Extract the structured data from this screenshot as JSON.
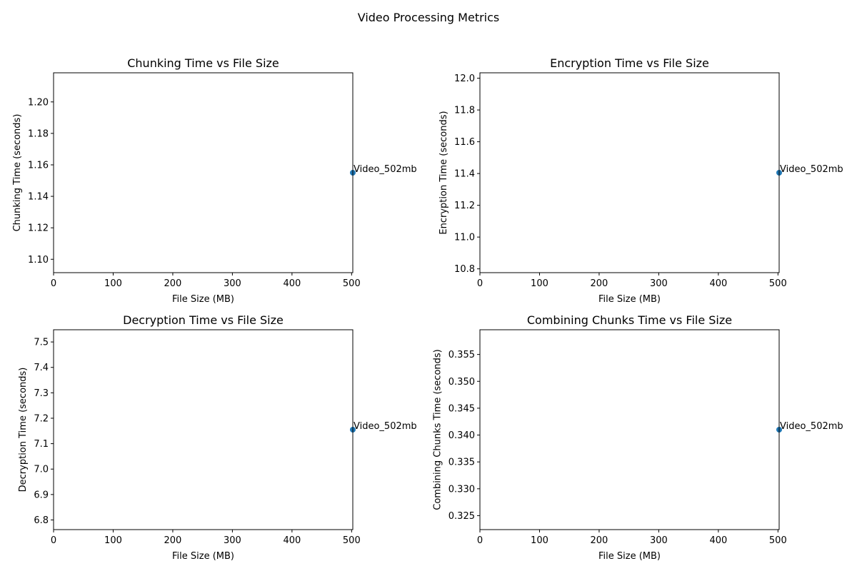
{
  "figure": {
    "suptitle": "Video Processing Metrics",
    "point_color": "#1f77b4"
  },
  "chart_data": [
    {
      "type": "scatter",
      "title": "Chunking Time vs File Size",
      "xlabel": "File Size (MB)",
      "ylabel": "Chunking Time (seconds)",
      "xlim": [
        0,
        502
      ],
      "ylim": [
        1.0915,
        1.2185
      ],
      "xticks": [
        0,
        100,
        200,
        300,
        400,
        500
      ],
      "yticks": [
        1.1,
        1.12,
        1.14,
        1.16,
        1.18,
        1.2
      ],
      "ytick_decimals": 2,
      "grid": false,
      "points": [
        {
          "x": 502,
          "y": 1.155,
          "label": "Video_502mb"
        }
      ]
    },
    {
      "type": "scatter",
      "title": "Encryption Time vs File Size",
      "xlabel": "File Size (MB)",
      "ylabel": "Encryption Time (seconds)",
      "xlim": [
        0,
        502
      ],
      "ylim": [
        10.776,
        12.034
      ],
      "xticks": [
        0,
        100,
        200,
        300,
        400,
        500
      ],
      "yticks": [
        10.8,
        11.0,
        11.2,
        11.4,
        11.6,
        11.8,
        12.0
      ],
      "ytick_decimals": 1,
      "grid": false,
      "points": [
        {
          "x": 502,
          "y": 11.405,
          "label": "Video_502mb"
        }
      ]
    },
    {
      "type": "scatter",
      "title": "Decryption Time vs File Size",
      "xlabel": "File Size (MB)",
      "ylabel": "Decryption Time (seconds)",
      "xlim": [
        0,
        502
      ],
      "ylim": [
        6.762,
        7.548
      ],
      "xticks": [
        0,
        100,
        200,
        300,
        400,
        500
      ],
      "yticks": [
        6.8,
        6.9,
        7.0,
        7.1,
        7.2,
        7.3,
        7.4,
        7.5
      ],
      "ytick_decimals": 1,
      "grid": false,
      "points": [
        {
          "x": 502,
          "y": 7.155,
          "label": "Video_502mb"
        }
      ]
    },
    {
      "type": "scatter",
      "title": "Combining Chunks Time vs File Size",
      "xlabel": "File Size (MB)",
      "ylabel": "Combining Chunks Time (seconds)",
      "xlim": [
        0,
        502
      ],
      "ylim": [
        0.3224,
        0.3596
      ],
      "xticks": [
        0,
        100,
        200,
        300,
        400,
        500
      ],
      "yticks": [
        0.325,
        0.33,
        0.335,
        0.34,
        0.345,
        0.35,
        0.355
      ],
      "ytick_decimals": 3,
      "grid": false,
      "points": [
        {
          "x": 502,
          "y": 0.341,
          "label": "Video_502mb"
        }
      ]
    }
  ]
}
